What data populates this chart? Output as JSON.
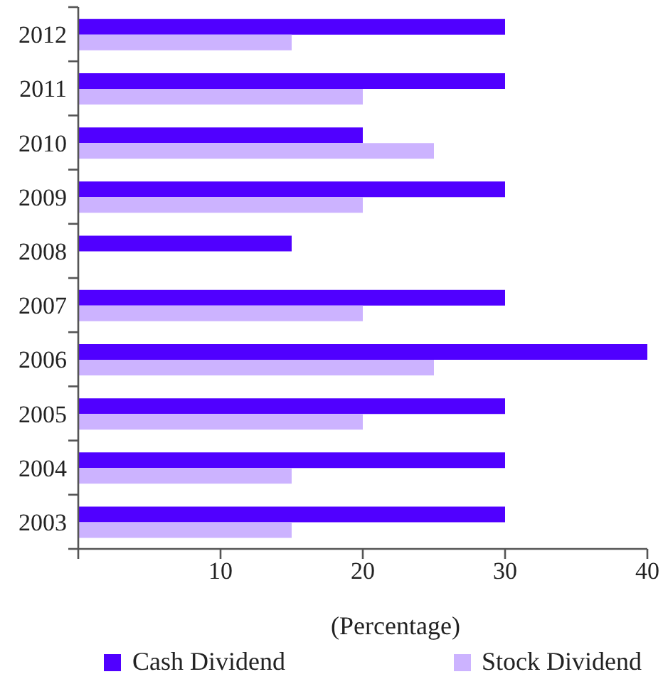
{
  "chart_data": {
    "type": "bar",
    "orientation": "horizontal",
    "xlabel": "(Percentage)",
    "categories": [
      "2012",
      "2011",
      "2010",
      "2009",
      "2008",
      "2007",
      "2006",
      "2005",
      "2004",
      "2003"
    ],
    "series": [
      {
        "name": "Cash Dividend",
        "color": "#5000ff",
        "values": [
          30,
          30,
          20,
          30,
          15,
          30,
          40,
          30,
          30,
          30
        ]
      },
      {
        "name": "Stock Dividend",
        "color": "#ccb3ff",
        "values": [
          15,
          20,
          25,
          20,
          null,
          20,
          25,
          20,
          15,
          15
        ]
      }
    ],
    "xlim": [
      0,
      40
    ],
    "xticks": [
      {
        "value": 0,
        "label": null
      },
      10,
      20,
      30,
      40
    ],
    "legend": "bottom"
  }
}
